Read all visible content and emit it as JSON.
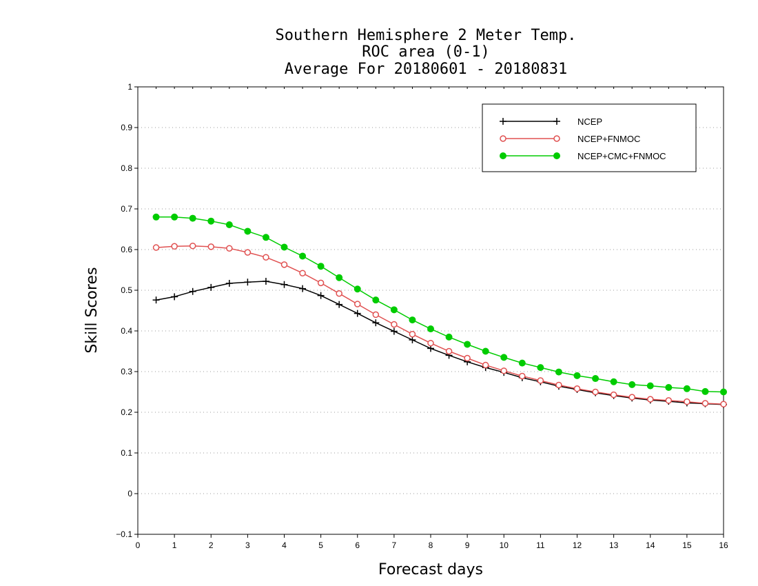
{
  "chart_data": {
    "type": "line",
    "title_lines": [
      "Southern Hemisphere 2 Meter Temp.",
      "ROC area (0-1)",
      "Average For 20180601 - 20180831"
    ],
    "xlabel": "Forecast days",
    "ylabel": "Skill Scores",
    "xlim": [
      0,
      16
    ],
    "ylim": [
      -0.1,
      1
    ],
    "x_ticks": [
      "0",
      "1",
      "2",
      "3",
      "4",
      "5",
      "6",
      "7",
      "8",
      "9",
      "10",
      "11",
      "12",
      "13",
      "14",
      "15",
      "16"
    ],
    "y_ticks": [
      "−0.1",
      "0",
      "0.1",
      "0.2",
      "0.3",
      "0.4",
      "0.5",
      "0.6",
      "0.7",
      "0.8",
      "0.9",
      "1"
    ],
    "grid": "horizontal dotted",
    "legend_position": "top-right",
    "x": [
      0.5,
      1,
      1.5,
      2,
      2.5,
      3,
      3.5,
      4,
      4.5,
      5,
      5.5,
      6,
      6.5,
      7,
      7.5,
      8,
      8.5,
      9,
      9.5,
      10,
      10.5,
      11,
      11.5,
      12,
      12.5,
      13,
      13.5,
      14,
      14.5,
      15,
      15.5,
      16
    ],
    "series": [
      {
        "name": "NCEP",
        "color": "#000000",
        "marker": "plus",
        "values": [
          0.476,
          0.484,
          0.497,
          0.507,
          0.517,
          0.52,
          0.522,
          0.514,
          0.504,
          0.487,
          0.465,
          0.443,
          0.42,
          0.399,
          0.378,
          0.357,
          0.34,
          0.324,
          0.31,
          0.298,
          0.285,
          0.275,
          0.264,
          0.256,
          0.248,
          0.241,
          0.235,
          0.23,
          0.227,
          0.223,
          0.221,
          0.219
        ]
      },
      {
        "name": "NCEP+FNMOC",
        "color": "#e05050",
        "marker": "open-circle",
        "values": [
          0.605,
          0.608,
          0.609,
          0.607,
          0.603,
          0.593,
          0.581,
          0.563,
          0.542,
          0.518,
          0.492,
          0.466,
          0.44,
          0.416,
          0.392,
          0.37,
          0.35,
          0.333,
          0.316,
          0.302,
          0.289,
          0.278,
          0.267,
          0.258,
          0.25,
          0.243,
          0.237,
          0.232,
          0.229,
          0.226,
          0.222,
          0.22
        ]
      },
      {
        "name": "NCEP+CMC+FNMOC",
        "color": "#00cc00",
        "marker": "filled-circle",
        "values": [
          0.68,
          0.68,
          0.677,
          0.67,
          0.661,
          0.645,
          0.63,
          0.606,
          0.584,
          0.559,
          0.531,
          0.503,
          0.476,
          0.452,
          0.427,
          0.405,
          0.385,
          0.367,
          0.35,
          0.335,
          0.321,
          0.31,
          0.299,
          0.29,
          0.283,
          0.275,
          0.268,
          0.265,
          0.261,
          0.258,
          0.251,
          0.25
        ]
      }
    ]
  }
}
